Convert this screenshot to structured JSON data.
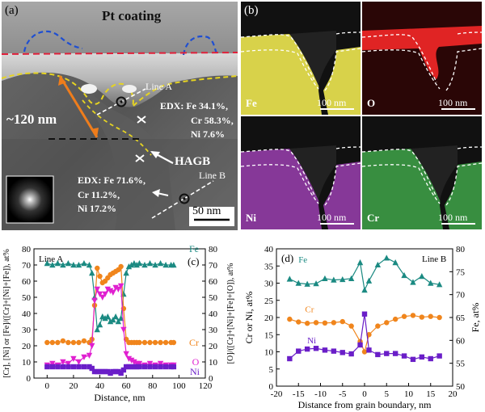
{
  "panel_a": {
    "label": "(a)",
    "pt_coating": "Pt coating",
    "thickness": "~120 nm",
    "line_a": "Line A",
    "edx_a": [
      "EDX:  Fe 34.1%,",
      "Cr 58.3%,",
      "Ni 7.6%"
    ],
    "hagb": "HAGB",
    "line_b": "Line B",
    "edx_b": [
      "EDX:  Fe 71.6%,",
      "Cr 11.2%,",
      "Ni 17.2%"
    ],
    "scale": "50 nm"
  },
  "panel_b": {
    "label": "(b)",
    "maps": [
      {
        "element": "Fe",
        "scale": "100 nm",
        "color": "#d8d24a"
      },
      {
        "element": "O",
        "scale": "100 nm",
        "color": "#e02424"
      },
      {
        "element": "Ni",
        "scale": "100 nm",
        "color": "#9b3fb0"
      },
      {
        "element": "Cr",
        "scale": "100 nm",
        "color": "#3fa449"
      }
    ]
  },
  "chart_data": [
    {
      "type": "line",
      "panel_label": "(c)",
      "corner_label": "Line A",
      "xlabel": "Distance, nm",
      "ylabel_left": "[Cr], [Ni] or [Fe]/([Cr]+[Ni]+[Fe]), at%",
      "ylabel_right": "[O]/([Cr]+[Ni]+[Fe]+[O]), at%",
      "xlim": [
        -10,
        120
      ],
      "ylim": [
        0,
        80
      ],
      "xticks": [
        0,
        20,
        40,
        60,
        80,
        100,
        120
      ],
      "yticks": [
        0,
        10,
        20,
        30,
        40,
        50,
        60,
        70,
        80
      ],
      "series": [
        {
          "name": "Fe",
          "color": "#1b8a82",
          "marker": "triangle",
          "x": [
            0,
            4,
            8,
            12,
            16,
            20,
            24,
            28,
            32,
            34,
            36,
            38,
            40,
            42,
            44,
            46,
            48,
            50,
            52,
            54,
            56,
            58,
            60,
            62,
            64,
            66,
            68,
            70,
            74,
            78,
            82,
            86,
            90,
            94,
            96
          ],
          "y": [
            71,
            70,
            71,
            70,
            71,
            70,
            70,
            71,
            70,
            65,
            50,
            30,
            33,
            38,
            37,
            38,
            35,
            36,
            38,
            35,
            37,
            52,
            65,
            69,
            70,
            71,
            70,
            71,
            70,
            71,
            70,
            71,
            70,
            70,
            70
          ]
        },
        {
          "name": "Cr",
          "color": "#f0851c",
          "marker": "circle",
          "x": [
            0,
            4,
            8,
            12,
            16,
            20,
            24,
            28,
            32,
            34,
            36,
            38,
            40,
            42,
            44,
            46,
            48,
            50,
            52,
            54,
            56,
            58,
            60,
            62,
            64,
            66,
            68,
            70,
            74,
            78,
            82,
            86,
            90,
            94,
            96
          ],
          "y": [
            22,
            22,
            22,
            23,
            22,
            22,
            22,
            23,
            22,
            24,
            45,
            68,
            63,
            59,
            60,
            62,
            64,
            65,
            66,
            67,
            69,
            43,
            24,
            22,
            22,
            22,
            22,
            22,
            22,
            22,
            22,
            22,
            22,
            22,
            22
          ]
        },
        {
          "name": "O",
          "color": "#e020d0",
          "marker": "triangle-down",
          "x": [
            0,
            4,
            8,
            12,
            16,
            20,
            24,
            28,
            32,
            34,
            36,
            38,
            40,
            42,
            44,
            46,
            48,
            50,
            52,
            54,
            56,
            58,
            60,
            62,
            64,
            66,
            68,
            70,
            74,
            78,
            82,
            86,
            90,
            94,
            96
          ],
          "y": [
            8,
            9,
            8,
            10,
            9,
            12,
            10,
            13,
            14,
            20,
            48,
            55,
            52,
            50,
            52,
            55,
            54,
            53,
            56,
            55,
            57,
            30,
            15,
            12,
            11,
            10,
            9,
            9,
            8,
            9,
            8,
            9,
            8,
            8,
            8
          ]
        },
        {
          "name": "Ni",
          "color": "#6a1ec8",
          "marker": "square",
          "x": [
            0,
            4,
            8,
            12,
            16,
            20,
            24,
            28,
            32,
            34,
            36,
            38,
            40,
            42,
            44,
            46,
            48,
            50,
            52,
            54,
            56,
            58,
            60,
            62,
            64,
            66,
            68,
            70,
            74,
            78,
            82,
            86,
            90,
            94,
            96
          ],
          "y": [
            7,
            7,
            7,
            7,
            7,
            7,
            7,
            7,
            7,
            6,
            4,
            4,
            4,
            4,
            4,
            4,
            3,
            4,
            4,
            4,
            3,
            5,
            7,
            7,
            7,
            7,
            7,
            7,
            7,
            7,
            7,
            7,
            7,
            7,
            7
          ]
        }
      ]
    },
    {
      "type": "line",
      "panel_label": "(d)",
      "corner_label": "Line B",
      "xlabel": "Distance from grain boundary, nm",
      "ylabel_left": "Cr or Ni, at%",
      "ylabel_right": "Fe, at%",
      "xlim": [
        -20,
        20
      ],
      "ylim_left": [
        0,
        40
      ],
      "ylim_right": [
        50,
        80
      ],
      "xticks": [
        -20,
        -15,
        -10,
        -5,
        0,
        5,
        10,
        15,
        20
      ],
      "yticks_left": [
        0,
        5,
        10,
        15,
        20,
        25,
        30,
        35,
        40
      ],
      "yticks_right": [
        50,
        55,
        60,
        65,
        70,
        75,
        80
      ],
      "series": [
        {
          "name": "Fe",
          "color": "#1b8a82",
          "marker": "triangle",
          "axis": "right",
          "x": [
            -17,
            -15,
            -13,
            -11,
            -9,
            -7,
            -5,
            -3,
            -1,
            0,
            1,
            3,
            5,
            7,
            9,
            11,
            13,
            15,
            17
          ],
          "y": [
            73.4,
            72.5,
            72.3,
            72.4,
            73.5,
            73.2,
            73.3,
            73.5,
            77,
            71,
            73,
            76.5,
            78,
            77,
            74.2,
            72.7,
            74,
            72.5,
            72.2
          ]
        },
        {
          "name": "Cr",
          "color": "#f0851c",
          "marker": "circle",
          "axis": "left",
          "x": [
            -17,
            -15,
            -13,
            -11,
            -9,
            -7,
            -5,
            -3,
            -1,
            0,
            1,
            3,
            5,
            7,
            9,
            11,
            13,
            15,
            17
          ],
          "y": [
            19.5,
            18.7,
            18.3,
            18.5,
            18.4,
            18.5,
            18.8,
            17.5,
            13,
            10,
            15,
            17.5,
            18.5,
            19.5,
            20.3,
            20.6,
            20.1,
            20.3,
            20
          ]
        },
        {
          "name": "Ni",
          "color": "#6a1ec8",
          "marker": "square",
          "axis": "left",
          "x": [
            -17,
            -15,
            -13,
            -11,
            -9,
            -7,
            -5,
            -3,
            -1,
            0,
            1,
            3,
            5,
            7,
            9,
            11,
            13,
            15,
            17
          ],
          "y": [
            8,
            10.2,
            10.8,
            11,
            10.5,
            10.2,
            9.8,
            9.4,
            12,
            21,
            10.5,
            9.2,
            9.5,
            9.5,
            8.8,
            7.8,
            8.5,
            8,
            8.8
          ]
        }
      ]
    }
  ]
}
